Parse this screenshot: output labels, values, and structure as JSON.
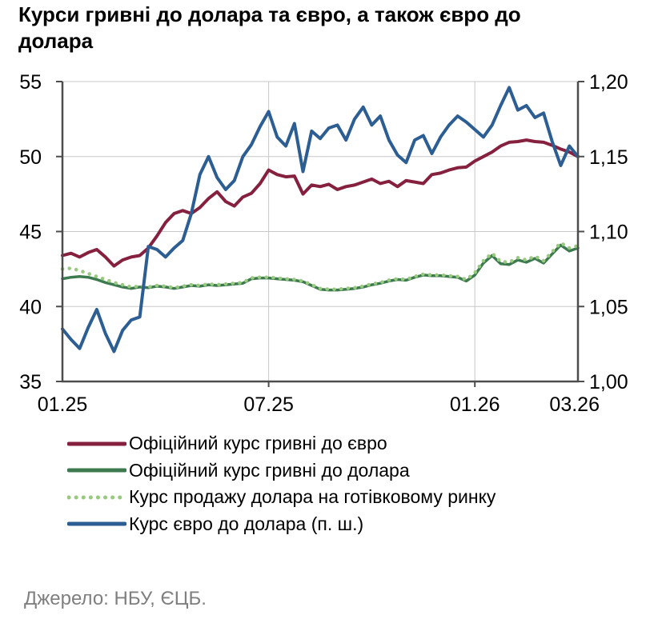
{
  "title_lines": [
    "Курси гривні до долара та євро, а також євро до",
    "долара"
  ],
  "source": "Джерело: НБУ, ЄЦБ.",
  "colors": {
    "grid": "#c8c8c8",
    "axis": "#4d4d4d",
    "text": "#000000",
    "source_text": "#7f7f7f"
  },
  "chart_data": {
    "type": "line",
    "title": "Курси гривні до долара та євро, а також євро до долара",
    "x_step_months": 0.25,
    "x_axis": {
      "range_months": [
        0,
        15
      ],
      "labels": [
        "01.25",
        "07.25",
        "01.26",
        "03.26"
      ],
      "label_months": [
        0,
        6,
        12,
        14.9
      ],
      "grid_months": [
        6,
        12
      ],
      "tick_months": [
        6,
        12
      ]
    },
    "left_axis": {
      "range": [
        35,
        55
      ],
      "labels": [
        "55",
        "50",
        "45",
        "40",
        "35"
      ],
      "values": [
        55,
        50,
        45,
        40,
        35
      ],
      "grid": [
        50,
        45,
        40
      ]
    },
    "right_axis": {
      "range": [
        1.0,
        1.2
      ],
      "labels": [
        "1,20",
        "1,15",
        "1,10",
        "1,05",
        "1,00"
      ],
      "values": [
        1.2,
        1.15,
        1.1,
        1.05,
        1.0
      ]
    },
    "draw_order": [
      1,
      2,
      0,
      3
    ],
    "series": [
      {
        "id": "uah-eur-official",
        "name": "Офіційний курс гривні до євро",
        "axis": "left",
        "color": "#86203f",
        "style": "solid",
        "width": 4,
        "values": [
          43.4,
          43.55,
          43.3,
          43.6,
          43.8,
          43.3,
          42.7,
          43.1,
          43.3,
          43.4,
          43.9,
          44.7,
          45.6,
          46.2,
          46.4,
          46.2,
          46.6,
          47.2,
          47.65,
          47.0,
          46.7,
          47.3,
          47.55,
          48.2,
          49.1,
          48.8,
          48.65,
          48.7,
          47.5,
          48.1,
          48.0,
          48.15,
          47.8,
          48.0,
          48.1,
          48.3,
          48.5,
          48.2,
          48.35,
          48.0,
          48.4,
          48.3,
          48.2,
          48.8,
          48.9,
          49.1,
          49.25,
          49.3,
          49.7,
          50.0,
          50.3,
          50.7,
          50.95,
          51.0,
          51.1,
          51.0,
          50.95,
          50.75,
          50.5,
          50.3,
          50.0
        ]
      },
      {
        "id": "uah-usd-official",
        "name": "Офіційний курс гривні до долара",
        "axis": "left",
        "color": "#3d7a4f",
        "style": "solid",
        "width": 3.5,
        "values": [
          41.85,
          41.95,
          42.0,
          41.95,
          41.8,
          41.6,
          41.45,
          41.3,
          41.2,
          41.3,
          41.25,
          41.35,
          41.3,
          41.2,
          41.3,
          41.4,
          41.35,
          41.45,
          41.4,
          41.45,
          41.5,
          41.55,
          41.85,
          41.9,
          41.9,
          41.85,
          41.8,
          41.75,
          41.65,
          41.4,
          41.15,
          41.1,
          41.1,
          41.15,
          41.2,
          41.3,
          41.45,
          41.55,
          41.7,
          41.8,
          41.75,
          41.95,
          42.1,
          42.05,
          42.05,
          42.0,
          41.95,
          41.7,
          42.1,
          42.9,
          43.4,
          42.85,
          42.8,
          43.1,
          42.95,
          43.2,
          42.9,
          43.5,
          44.1,
          43.7,
          43.9
        ]
      },
      {
        "id": "usd-cash-sale",
        "name": "Курс продажу долара на готівковому ринку",
        "axis": "left",
        "color": "#97c97e",
        "style": "dotted",
        "width": 4.5,
        "values": [
          42.5,
          42.55,
          42.4,
          42.2,
          42.0,
          41.8,
          41.6,
          41.45,
          41.3,
          41.35,
          41.3,
          41.4,
          41.35,
          41.25,
          41.35,
          41.45,
          41.4,
          41.5,
          41.45,
          41.5,
          41.55,
          41.6,
          41.9,
          41.95,
          41.95,
          41.9,
          41.85,
          41.8,
          41.7,
          41.45,
          41.2,
          41.15,
          41.15,
          41.2,
          41.25,
          41.35,
          41.5,
          41.6,
          41.75,
          41.85,
          41.8,
          42.0,
          42.15,
          42.1,
          42.1,
          42.05,
          42.0,
          41.8,
          42.25,
          43.05,
          43.55,
          43.0,
          42.95,
          43.25,
          43.1,
          43.35,
          43.05,
          43.65,
          44.25,
          43.9,
          44.05
        ]
      },
      {
        "id": "eur-usd",
        "name": "Курс євро до долара (п. ш.)",
        "axis": "right",
        "color": "#2c5e93",
        "style": "solid",
        "width": 4,
        "values": [
          1.035,
          1.028,
          1.022,
          1.036,
          1.048,
          1.032,
          1.02,
          1.034,
          1.041,
          1.043,
          1.09,
          1.088,
          1.083,
          1.089,
          1.094,
          1.112,
          1.138,
          1.15,
          1.136,
          1.128,
          1.134,
          1.15,
          1.158,
          1.17,
          1.18,
          1.163,
          1.157,
          1.172,
          1.14,
          1.167,
          1.162,
          1.169,
          1.171,
          1.161,
          1.175,
          1.183,
          1.171,
          1.177,
          1.161,
          1.151,
          1.146,
          1.161,
          1.164,
          1.152,
          1.163,
          1.171,
          1.177,
          1.173,
          1.168,
          1.163,
          1.171,
          1.184,
          1.196,
          1.181,
          1.184,
          1.176,
          1.179,
          1.16,
          1.144,
          1.157,
          1.15
        ]
      }
    ]
  }
}
